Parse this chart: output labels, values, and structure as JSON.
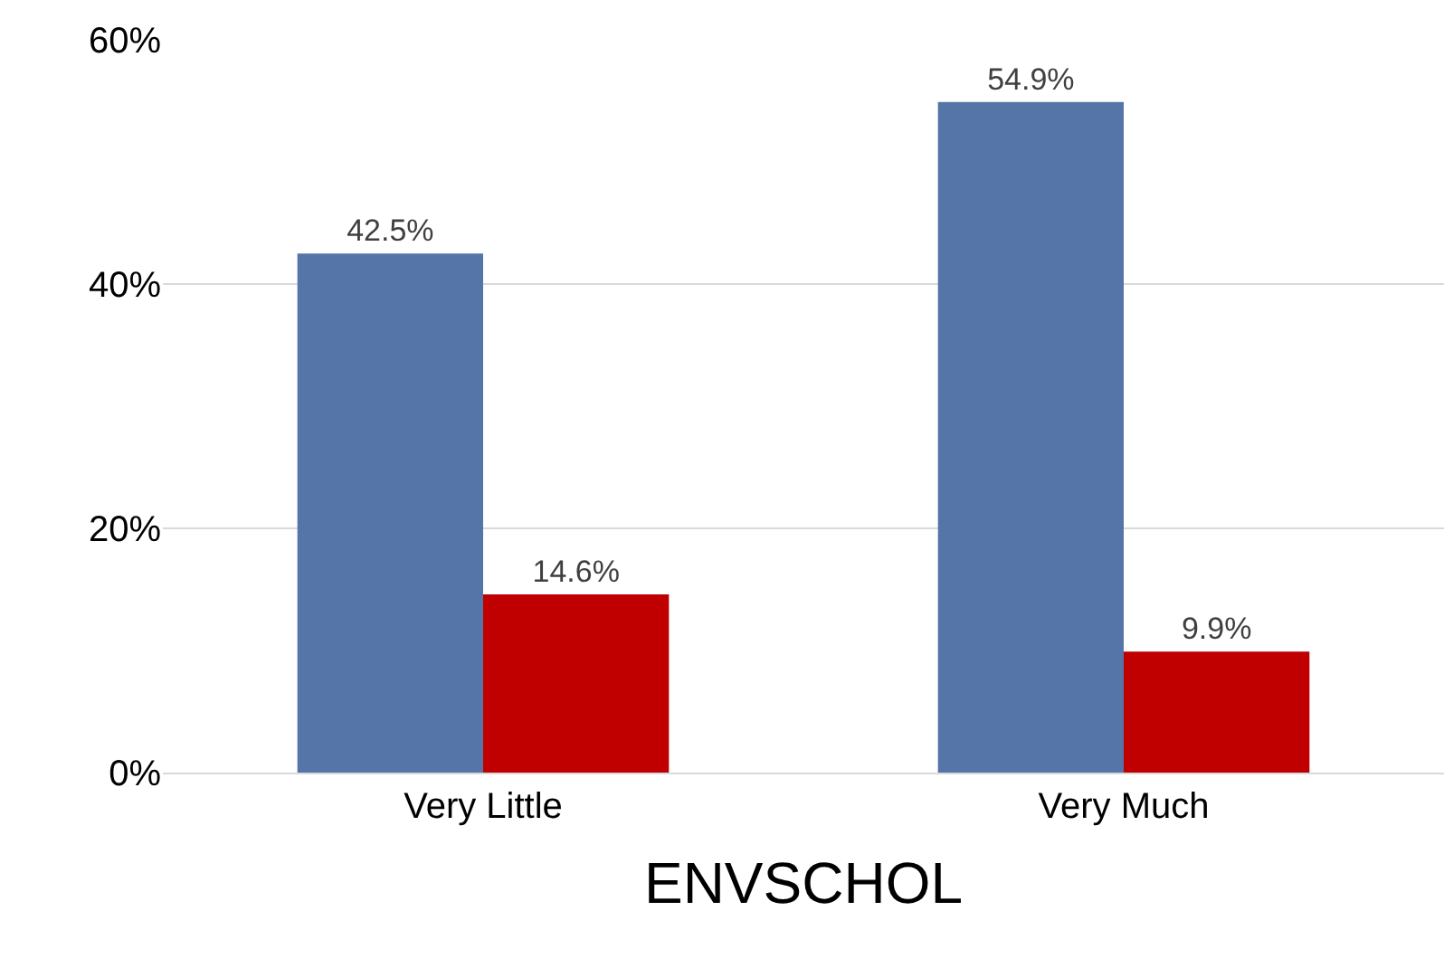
{
  "chart_data": {
    "type": "bar",
    "xlabel": "ENVSCHOL",
    "categories": [
      "Very Little",
      "Very Much"
    ],
    "series": [
      {
        "color": "#5574a7",
        "values": [
          42.5,
          54.9
        ],
        "value_labels": [
          "42.5%",
          "54.9%"
        ]
      },
      {
        "color": "#c00000",
        "values": [
          14.6,
          9.9
        ],
        "value_labels": [
          "14.6%",
          "9.9%"
        ]
      }
    ],
    "ylim": [
      0,
      60
    ],
    "yticks": [
      {
        "value": 0,
        "label": "0%"
      },
      {
        "value": 20,
        "label": "20%"
      },
      {
        "value": 40,
        "label": "40%"
      },
      {
        "value": 60,
        "label": "60%"
      }
    ],
    "grid": "y"
  }
}
